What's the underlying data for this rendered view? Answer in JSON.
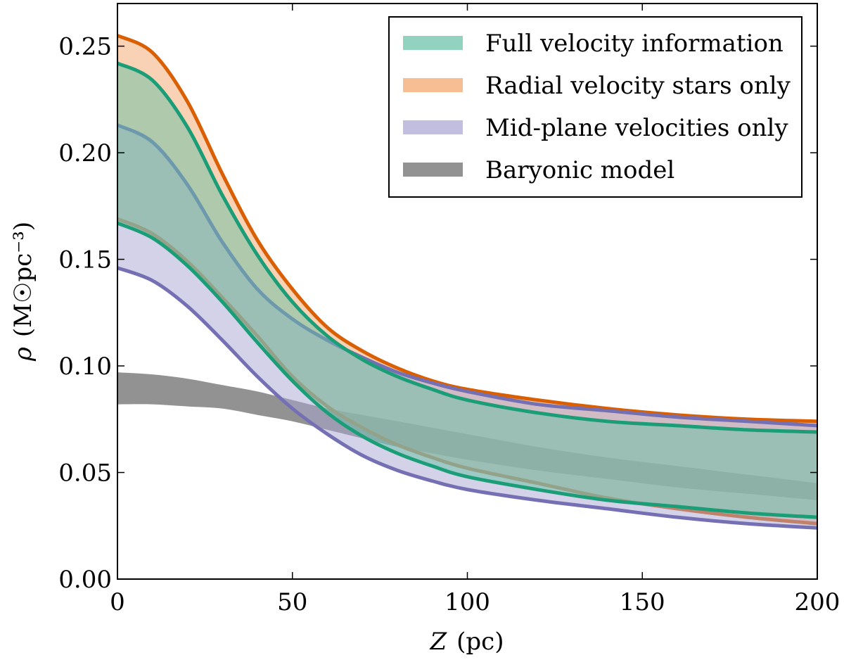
{
  "chart_data": {
    "type": "area",
    "title": "",
    "xlabel_var": "Z",
    "xlabel_unit": "(pc)",
    "ylabel_var": "ρ",
    "ylabel_unit": "(M☉pc⁻³)",
    "xlim": [
      0,
      200
    ],
    "ylim": [
      0,
      0.27
    ],
    "xticks": [
      0,
      50,
      100,
      150,
      200
    ],
    "xtick_labels": [
      "0",
      "50",
      "100",
      "150",
      "200"
    ],
    "yticks": [
      0.0,
      0.05,
      0.1,
      0.15,
      0.2,
      0.25
    ],
    "ytick_labels": [
      "0.00",
      "0.05",
      "0.10",
      "0.15",
      "0.20",
      "0.25"
    ],
    "grid": false,
    "legend_position": "top-right",
    "z": [
      0,
      10,
      20,
      30,
      40,
      50,
      60,
      70,
      80,
      90,
      100,
      120,
      140,
      160,
      180,
      200
    ],
    "series": [
      {
        "name": "Full velocity information",
        "fill": "#66c2a5",
        "line": "#1b9e77",
        "upper": [
          0.242,
          0.234,
          0.212,
          0.18,
          0.152,
          0.13,
          0.114,
          0.103,
          0.095,
          0.089,
          0.084,
          0.078,
          0.074,
          0.072,
          0.07,
          0.069
        ],
        "lower": [
          0.167,
          0.16,
          0.147,
          0.13,
          0.111,
          0.093,
          0.078,
          0.067,
          0.059,
          0.053,
          0.048,
          0.042,
          0.037,
          0.034,
          0.031,
          0.029
        ]
      },
      {
        "name": "Radial velocity stars only",
        "fill": "#f4a46a",
        "line": "#d95f02",
        "upper": [
          0.255,
          0.247,
          0.224,
          0.19,
          0.159,
          0.136,
          0.118,
          0.107,
          0.099,
          0.093,
          0.089,
          0.084,
          0.08,
          0.077,
          0.075,
          0.074
        ],
        "lower": [
          0.169,
          0.162,
          0.149,
          0.132,
          0.114,
          0.095,
          0.081,
          0.071,
          0.063,
          0.057,
          0.052,
          0.045,
          0.038,
          0.033,
          0.029,
          0.026
        ]
      },
      {
        "name": "Mid-plane velocities only",
        "fill": "#aaa5d3",
        "line": "#7570b3",
        "upper": [
          0.213,
          0.205,
          0.185,
          0.158,
          0.136,
          0.122,
          0.112,
          0.104,
          0.097,
          0.092,
          0.088,
          0.082,
          0.079,
          0.076,
          0.074,
          0.072
        ],
        "lower": [
          0.146,
          0.14,
          0.128,
          0.112,
          0.095,
          0.08,
          0.068,
          0.058,
          0.051,
          0.046,
          0.042,
          0.037,
          0.033,
          0.029,
          0.026,
          0.024
        ]
      },
      {
        "name": "Baryonic model",
        "fill": "#8c8c8c",
        "line": "none",
        "upper": [
          0.097,
          0.096,
          0.094,
          0.091,
          0.088,
          0.084,
          0.08,
          0.077,
          0.074,
          0.071,
          0.068,
          0.062,
          0.057,
          0.053,
          0.049,
          0.045
        ],
        "lower": [
          0.082,
          0.082,
          0.081,
          0.08,
          0.077,
          0.074,
          0.07,
          0.066,
          0.062,
          0.059,
          0.056,
          0.051,
          0.047,
          0.043,
          0.04,
          0.037
        ]
      }
    ]
  }
}
